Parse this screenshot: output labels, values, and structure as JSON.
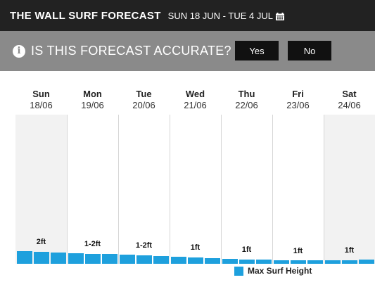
{
  "header": {
    "title": "THE WALL SURF FORECAST",
    "date_range": "SUN 18 JUN - TUE 4 JUL",
    "calendar_icon": "calendar-icon"
  },
  "feedback": {
    "info_icon": "info-icon",
    "info_glyph": "i",
    "question": "IS THIS FORECAST ACCURATE?",
    "yes_label": "Yes",
    "no_label": "No"
  },
  "colors": {
    "bar": "#1ea0dd",
    "topbar": "#222222",
    "feedback_bar": "#8a8a8a",
    "weekend_bg": "#f2f2f2"
  },
  "days": [
    {
      "name": "Sun",
      "date": "18/06",
      "weekend": true
    },
    {
      "name": "Mon",
      "date": "19/06",
      "weekend": false
    },
    {
      "name": "Tue",
      "date": "20/06",
      "weekend": false
    },
    {
      "name": "Wed",
      "date": "21/06",
      "weekend": false
    },
    {
      "name": "Thu",
      "date": "22/06",
      "weekend": false
    },
    {
      "name": "Fri",
      "date": "23/06",
      "weekend": false
    },
    {
      "name": "Sat",
      "date": "24/06",
      "weekend": true
    }
  ],
  "chart_data": {
    "type": "bar",
    "categories": [
      "18/06",
      "19/06",
      "20/06",
      "21/06",
      "22/06",
      "23/06",
      "24/06"
    ],
    "bars_per_day": 3,
    "series": [
      {
        "name": "Max Surf Height",
        "values": [
          [
            2.0,
            1.9,
            1.8
          ],
          [
            1.7,
            1.6,
            1.5
          ],
          [
            1.4,
            1.3,
            1.2
          ],
          [
            1.1,
            1.0,
            0.9
          ],
          [
            0.8,
            0.7,
            0.7
          ],
          [
            0.6,
            0.6,
            0.6
          ],
          [
            0.5,
            0.6,
            0.7
          ]
        ]
      }
    ],
    "day_labels": [
      "2ft",
      "1-2ft",
      "1-2ft",
      "1ft",
      "1ft",
      "1ft",
      "1ft"
    ],
    "unit": "ft",
    "ylim": [
      0,
      2
    ],
    "legend": {
      "label": "Max Surf Height",
      "position": "bottom-right"
    }
  }
}
